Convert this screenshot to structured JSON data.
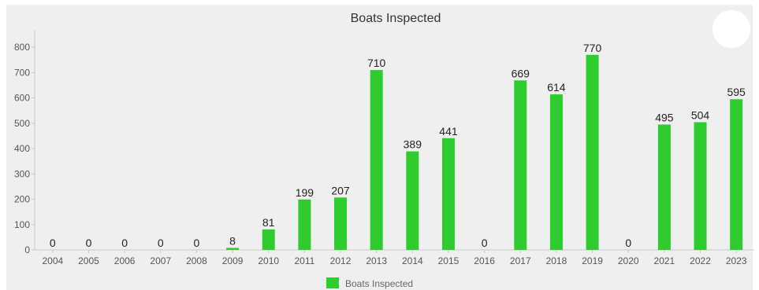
{
  "chart_data": {
    "type": "bar",
    "title": "Boats Inspected",
    "xlabel": "",
    "ylabel": "",
    "ylim": [
      0,
      850
    ],
    "yticks": [
      0,
      100,
      200,
      300,
      400,
      500,
      600,
      700,
      800
    ],
    "categories": [
      "2004",
      "2005",
      "2006",
      "2007",
      "2008",
      "2009",
      "2010",
      "2011",
      "2012",
      "2013",
      "2014",
      "2015",
      "2016",
      "2017",
      "2018",
      "2019",
      "2020",
      "2021",
      "2022",
      "2023"
    ],
    "series": [
      {
        "name": "Boats Inspected",
        "color": "#2ecc2e",
        "values": [
          0,
          0,
          0,
          0,
          0,
          8,
          81,
          199,
          207,
          710,
          389,
          441,
          0,
          669,
          614,
          770,
          0,
          495,
          504,
          595
        ]
      }
    ],
    "legend_position": "bottom-center",
    "grid": false
  }
}
